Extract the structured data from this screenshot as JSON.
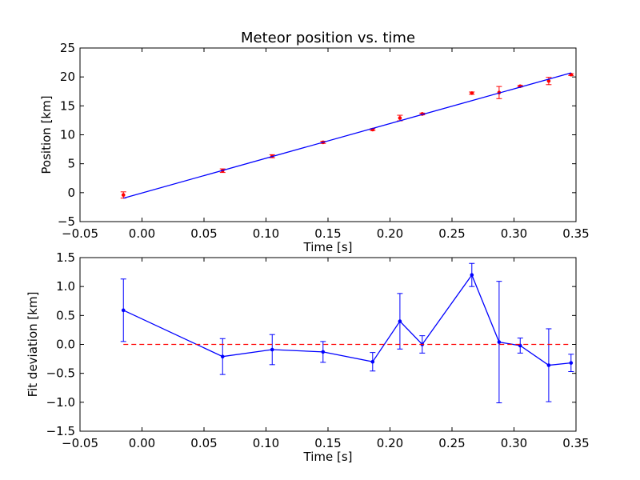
{
  "chart_data": [
    {
      "type": "scatter",
      "title": "Meteor position vs. time",
      "xlabel": "Time [s]",
      "ylabel": "Position [km]",
      "xlim": [
        -0.05,
        0.35
      ],
      "ylim": [
        -5,
        25
      ],
      "xticks": [
        "−0.05",
        "0.00",
        "0.05",
        "0.10",
        "0.15",
        "0.20",
        "0.25",
        "0.30",
        "0.35"
      ],
      "yticks": [
        "−5",
        "0",
        "5",
        "10",
        "15",
        "20",
        "25"
      ],
      "grid": false,
      "colors": {
        "points": "#ff0000",
        "fit": "#0000ff"
      },
      "series": [
        {
          "kind": "errorbar-points",
          "x": [
            -0.015,
            0.065,
            0.105,
            0.146,
            0.186,
            0.208,
            0.226,
            0.266,
            0.288,
            0.305,
            0.328,
            0.346
          ],
          "y": [
            -0.4,
            3.8,
            6.3,
            8.7,
            10.9,
            12.9,
            13.6,
            17.2,
            17.3,
            18.4,
            19.3,
            20.4
          ],
          "err": [
            0.54,
            0.31,
            0.26,
            0.18,
            0.16,
            0.48,
            0.15,
            0.2,
            1.05,
            0.13,
            0.63,
            0.15
          ]
        },
        {
          "kind": "fit-line",
          "x": [
            -0.015,
            0.346
          ],
          "y": [
            -0.95,
            20.7
          ]
        }
      ]
    },
    {
      "type": "line",
      "title": "",
      "xlabel": "Time [s]",
      "ylabel": "Fit deviation [km]",
      "xlim": [
        -0.05,
        0.35
      ],
      "ylim": [
        -1.5,
        1.5
      ],
      "xticks": [
        "−0.05",
        "0.00",
        "0.05",
        "0.10",
        "0.15",
        "0.20",
        "0.25",
        "0.30",
        "0.35"
      ],
      "yticks": [
        "−1.5",
        "−1.0",
        "−0.5",
        "0.0",
        "0.5",
        "1.0",
        "1.5"
      ],
      "grid": false,
      "colors": {
        "deviation": "#0000ff",
        "zero": "#ff0000"
      },
      "series": [
        {
          "kind": "errorbar-line",
          "x": [
            -0.015,
            0.065,
            0.105,
            0.146,
            0.186,
            0.208,
            0.226,
            0.266,
            0.288,
            0.305,
            0.328,
            0.346
          ],
          "y": [
            0.59,
            -0.21,
            -0.09,
            -0.13,
            -0.3,
            0.4,
            0.0,
            1.2,
            0.04,
            -0.02,
            -0.36,
            -0.32
          ],
          "err": [
            0.54,
            0.31,
            0.26,
            0.18,
            0.16,
            0.48,
            0.15,
            0.2,
            1.05,
            0.13,
            0.63,
            0.15
          ]
        },
        {
          "kind": "zero-line",
          "x": [
            -0.015,
            0.346
          ],
          "y": [
            0,
            0
          ]
        }
      ]
    }
  ]
}
